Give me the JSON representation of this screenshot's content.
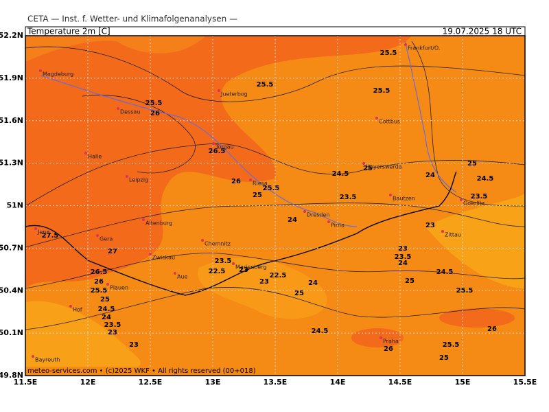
{
  "header": {
    "institute": "CETA — Inst. f. Wetter- und Klimafolgenanalysen —",
    "parameter": "Temperature 2m [C]",
    "valid_time": "19.07.2025 18 UTC"
  },
  "map": {
    "lon_ticks": [
      {
        "value": 11.5,
        "label": "11.5E"
      },
      {
        "value": 12,
        "label": "12E"
      },
      {
        "value": 12.5,
        "label": "12.5E"
      },
      {
        "value": 13,
        "label": "13E"
      },
      {
        "value": 13.5,
        "label": "13.5E"
      },
      {
        "value": 14,
        "label": "14E"
      },
      {
        "value": 14.5,
        "label": "14.5E"
      },
      {
        "value": 15,
        "label": "15E"
      },
      {
        "value": 15.5,
        "label": "15.5E"
      }
    ],
    "lat_ticks": [
      {
        "value": 49.8,
        "label": "49.8N"
      },
      {
        "value": 50.1,
        "label": "50.1N"
      },
      {
        "value": 50.4,
        "label": "50.4N"
      },
      {
        "value": 50.7,
        "label": "50.7N"
      },
      {
        "value": 51,
        "label": "51N"
      },
      {
        "value": 51.3,
        "label": "51.3N"
      },
      {
        "value": 51.6,
        "label": "51.6N"
      },
      {
        "value": 51.9,
        "label": "51.9N"
      },
      {
        "value": 52.2,
        "label": "52.2N"
      }
    ],
    "cities": [
      "Magdeburg",
      "Jueterbog",
      "Frankfurt/O.",
      "Dessau",
      "Cottbus",
      "Halle",
      "Leipzig",
      "Torgau",
      "Riesa",
      "Hoyerswerda",
      "Bautzen",
      "Goerlitz",
      "Dresden",
      "Pirna",
      "Zittau",
      "Jena",
      "Gera",
      "Altenburg",
      "Chemnitz",
      "Zwickau",
      "Aue",
      "Plauen",
      "Marienberg",
      "Hof",
      "Praha",
      "Bayreuth"
    ],
    "contour_labels": [
      25.5,
      25.5,
      25.5,
      25.5,
      26,
      26.5,
      26,
      25.5,
      25,
      24.5,
      25,
      24,
      25,
      24.5,
      23.5,
      23.5,
      24,
      23,
      27.5,
      27,
      23,
      23.5,
      24,
      24.5,
      23.5,
      23,
      22.5,
      22.5,
      23,
      24,
      25,
      26.5,
      26,
      25.5,
      25,
      24.5,
      24,
      23.5,
      23,
      25,
      25.5,
      24.5,
      26,
      23,
      25.5,
      26,
      25
    ]
  },
  "footer": "meteo-services.com • (c)2025 WKF • All rights reserved (00+018)"
}
